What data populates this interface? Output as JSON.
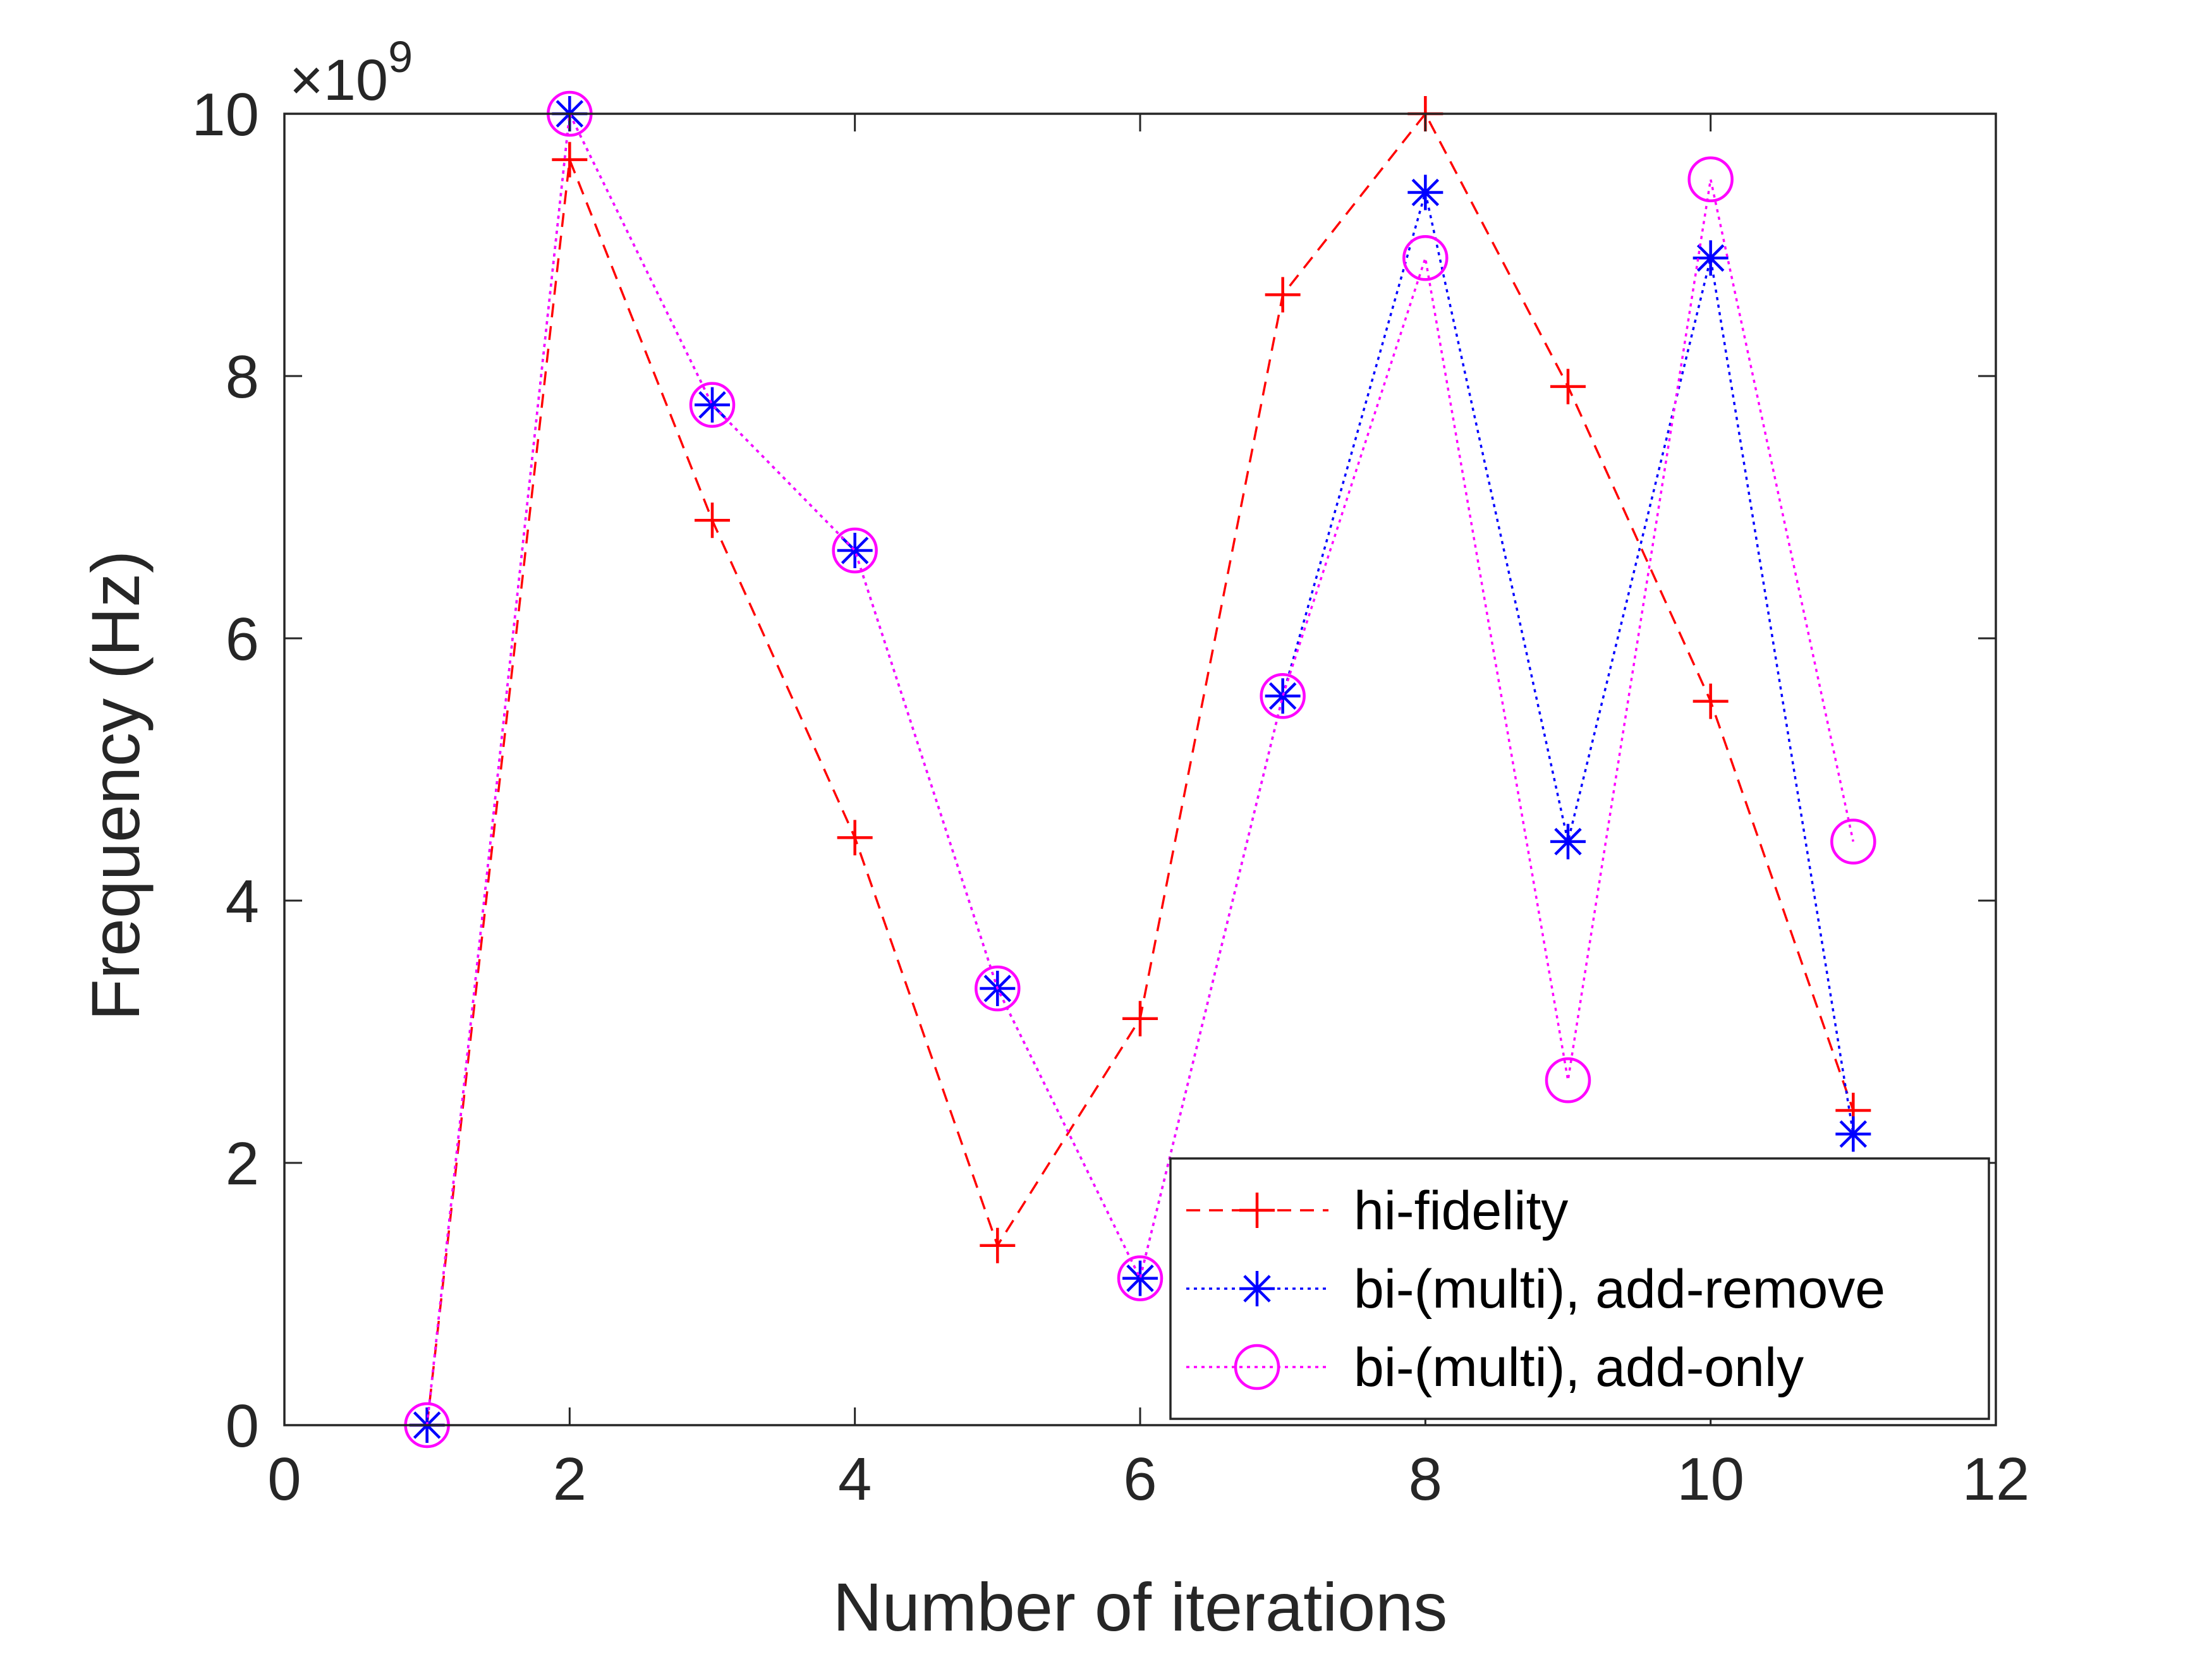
{
  "chart_data": {
    "type": "line",
    "title": "",
    "xlabel": "Number of iterations",
    "ylabel": "Frequency (Hz)",
    "xlim": [
      0,
      12
    ],
    "ylim": [
      0,
      10
    ],
    "x_ticks": [
      "0",
      "2",
      "4",
      "6",
      "8",
      "10",
      "12"
    ],
    "y_ticks": [
      "0",
      "2",
      "4",
      "6",
      "8",
      "10"
    ],
    "y_exponent": {
      "base": "×10",
      "power": "9"
    },
    "grid": false,
    "legend_location": "bottom-right",
    "series": [
      {
        "name": "hi-fidelity",
        "color": "#ff0000",
        "line_style": "dashed",
        "marker": "plus",
        "x": [
          1,
          2,
          3,
          4,
          5,
          6,
          7,
          8,
          9,
          10,
          11
        ],
        "y": [
          0,
          9.65,
          6.9,
          4.48,
          1.37,
          3.1,
          8.62,
          10.0,
          7.92,
          5.52,
          2.4
        ]
      },
      {
        "name": "bi-(multi), add-remove",
        "color": "#0000ff",
        "line_style": "dotted",
        "marker": "asterisk",
        "x": [
          1,
          2,
          3,
          4,
          5,
          6,
          7,
          8,
          9,
          10,
          11
        ],
        "y": [
          0,
          10.0,
          7.78,
          6.67,
          3.33,
          1.12,
          5.56,
          9.4,
          4.45,
          8.9,
          2.22
        ]
      },
      {
        "name": "bi-(multi), add-only",
        "color": "#ff00ff",
        "line_style": "dotted",
        "marker": "circle",
        "x": [
          1,
          2,
          3,
          4,
          5,
          6,
          7,
          8,
          9,
          10,
          11
        ],
        "y": [
          0,
          10.0,
          7.78,
          6.67,
          3.33,
          1.12,
          5.56,
          8.9,
          2.63,
          9.5,
          4.45
        ]
      }
    ]
  }
}
